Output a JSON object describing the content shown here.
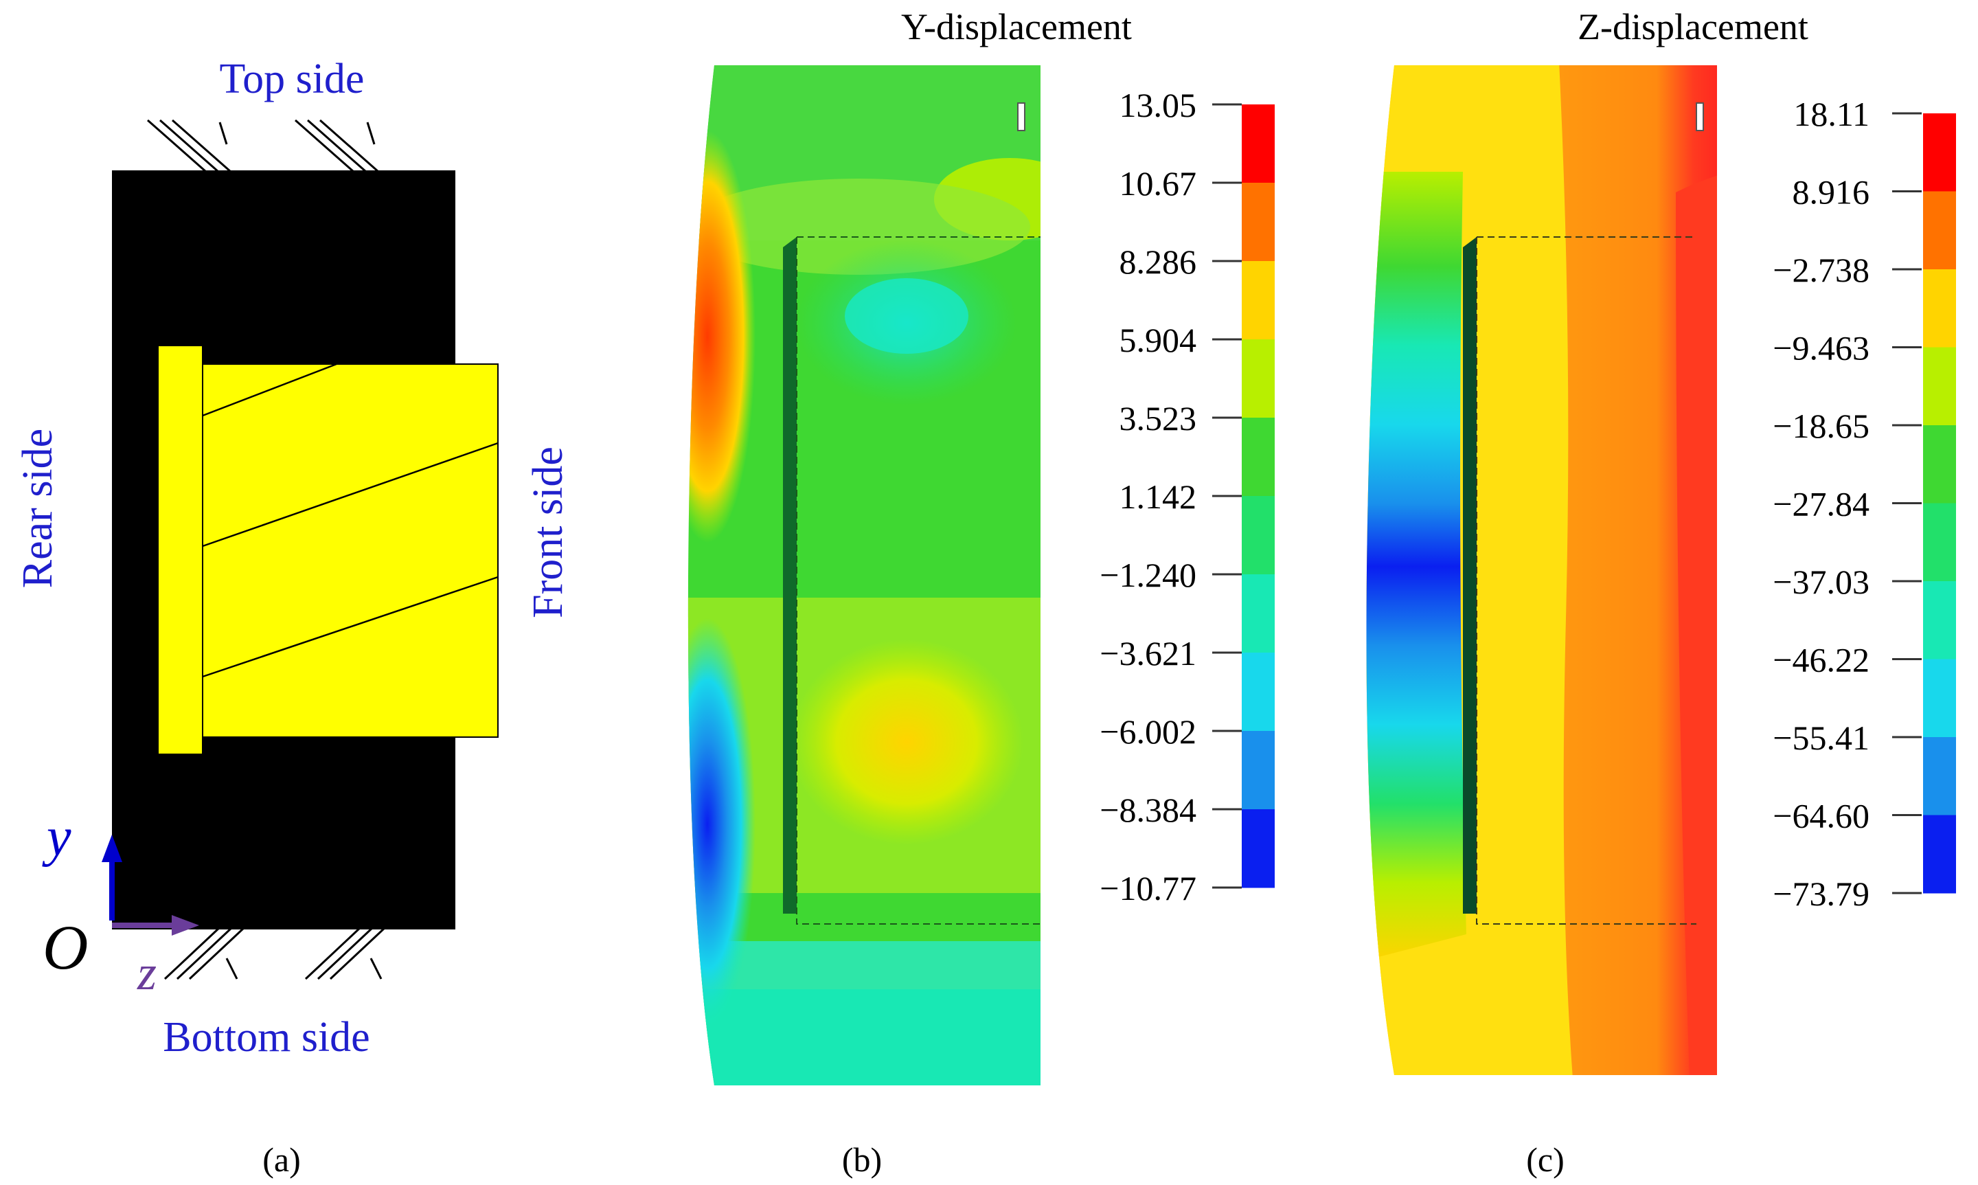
{
  "panel_a": {
    "caption": "(a)",
    "top_label": "Top side",
    "bottom_label": "Bottom side",
    "rear_label": "Rear side",
    "front_label": "Front side",
    "axis_y": "y",
    "axis_z": "z",
    "origin": "O",
    "colors": {
      "block": "#000000",
      "specimen": "#ffff00",
      "label": "#1f1fcc",
      "axis_y": "#0000cc",
      "axis_z": "#6a3d9a"
    }
  },
  "panel_b": {
    "caption": "(b)",
    "title": "Y-displacement",
    "legend_values": [
      "13.05",
      "10.67",
      "8.286",
      "5.904",
      "3.523",
      "1.142",
      "−1.240",
      "−3.621",
      "−6.002",
      "−8.384",
      "−10.77"
    ],
    "legend_colors": [
      "#ff0000",
      "#ff7200",
      "#ffd400",
      "#b8ef00",
      "#3fd832",
      "#22e06a",
      "#18e8b4",
      "#18d8ec",
      "#1990ec",
      "#0a1ff0"
    ]
  },
  "panel_c": {
    "caption": "(c)",
    "title": "Z-displacement",
    "legend_values": [
      "18.11",
      "8.916",
      "−2.738",
      "−9.463",
      "−18.65",
      "−27.84",
      "−37.03",
      "−46.22",
      "−55.41",
      "−64.60",
      "−73.79"
    ],
    "legend_colors": [
      "#ff0000",
      "#ff7200",
      "#ffd400",
      "#b8ef00",
      "#3fd832",
      "#22e06a",
      "#18e8b4",
      "#18d8ec",
      "#1990ec",
      "#0a1ff0"
    ]
  }
}
